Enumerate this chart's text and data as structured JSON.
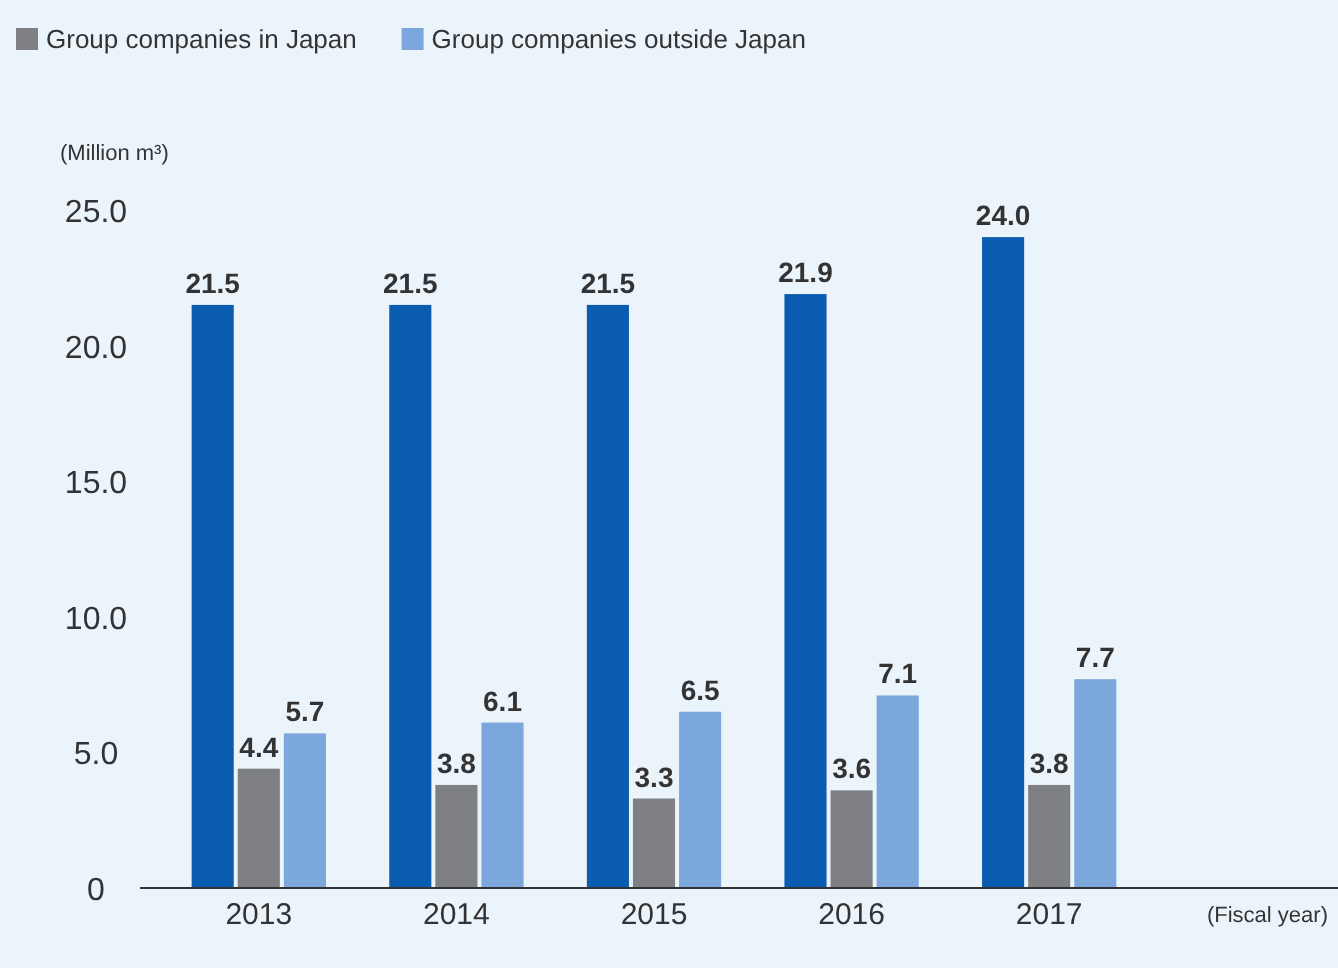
{
  "chart_data": {
    "type": "bar",
    "ylabel": "(Million m³)",
    "xlabel": "(Fiscal year)",
    "categories": [
      "2013",
      "2014",
      "2015",
      "2016",
      "2017"
    ],
    "series": [
      {
        "color": "#0a5cb0",
        "values": [
          21.5,
          21.5,
          21.5,
          21.9,
          24.0
        ],
        "value_labels": [
          "21.5",
          "21.5",
          "21.5",
          "21.9",
          "24.0"
        ]
      },
      {
        "name": "Group companies in Japan",
        "color": "#7f8083",
        "values": [
          4.4,
          3.8,
          3.3,
          3.6,
          3.8
        ],
        "value_labels": [
          "4.4",
          "3.8",
          "3.3",
          "3.6",
          "3.8"
        ]
      },
      {
        "name": "Group companies outside Japan",
        "color": "#7ca7dc",
        "values": [
          5.7,
          6.1,
          6.5,
          7.1,
          7.7
        ],
        "value_labels": [
          "5.7",
          "6.1",
          "6.5",
          "7.1",
          "7.7"
        ]
      }
    ],
    "ylim": [
      0,
      25
    ],
    "yticks": [
      0,
      {
        "value": 5,
        "label": "5.0"
      },
      {
        "value": 10,
        "label": "10.0"
      },
      {
        "value": 15,
        "label": "15.0"
      },
      {
        "value": 20,
        "label": "20.0"
      },
      {
        "value": 25,
        "label": "25.0"
      }
    ],
    "legend": "top left",
    "grid": false
  }
}
